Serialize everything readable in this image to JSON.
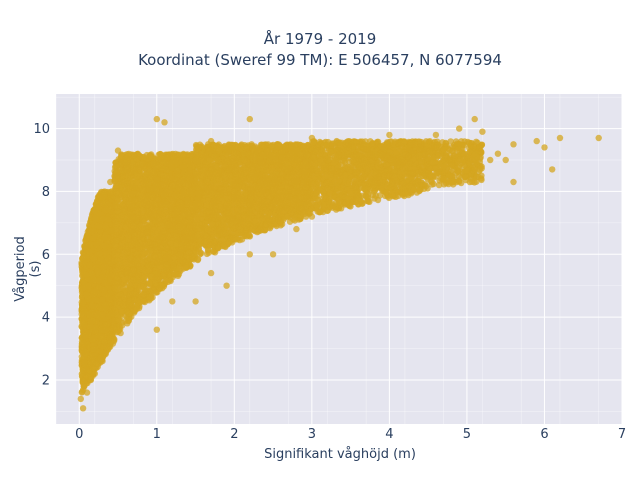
{
  "chart_data": {
    "type": "scatter",
    "title_line1": "År 1979 - 2019",
    "title_line2": "Koordinat (Sweref 99 TM): E 506457, N 6077594",
    "xlabel": "Signifikant våghöjd (m)",
    "ylabel": "Vågperiod (s)",
    "xlim": [
      -0.3,
      7
    ],
    "ylim": [
      0.6,
      11.1
    ],
    "xticks": [
      0,
      1,
      2,
      3,
      4,
      5,
      6,
      7
    ],
    "yticks": [
      2,
      4,
      6,
      8,
      10
    ],
    "grid": true,
    "legend": "none",
    "colors": {
      "marker": "#d4a520",
      "plot_bg": "#e5e5ef",
      "grid": "#ffffff",
      "text": "#2a3f5f"
    },
    "series": [
      {
        "points": [
          [
            0.02,
            1.4
          ],
          [
            0.05,
            1.1
          ],
          [
            0.1,
            1.6
          ],
          [
            0.15,
            2.0
          ],
          [
            0.2,
            2.2
          ],
          [
            0.3,
            2.6
          ],
          [
            0.05,
            5.9
          ],
          [
            0.1,
            6.6
          ],
          [
            0.2,
            7.4
          ],
          [
            0.3,
            7.8
          ],
          [
            0.4,
            8.3
          ],
          [
            0.5,
            9.3
          ],
          [
            0.5,
            4.0
          ],
          [
            0.7,
            5.5
          ],
          [
            0.8,
            6.8
          ],
          [
            0.9,
            7.3
          ],
          [
            1.0,
            8.0
          ],
          [
            1.1,
            9.0
          ],
          [
            1.0,
            10.3
          ],
          [
            1.1,
            10.2
          ],
          [
            1.0,
            3.6
          ],
          [
            1.2,
            4.5
          ],
          [
            1.3,
            6.0
          ],
          [
            1.5,
            7.5
          ],
          [
            1.5,
            4.5
          ],
          [
            1.7,
            5.4
          ],
          [
            1.7,
            9.6
          ],
          [
            1.9,
            5.0
          ],
          [
            2.0,
            6.5
          ],
          [
            2.0,
            8.0
          ],
          [
            2.2,
            6.0
          ],
          [
            2.2,
            10.3
          ],
          [
            2.4,
            8.5
          ],
          [
            2.5,
            6.0
          ],
          [
            2.6,
            7.0
          ],
          [
            2.8,
            6.8
          ],
          [
            2.8,
            9.3
          ],
          [
            3.0,
            7.2
          ],
          [
            3.0,
            9.7
          ],
          [
            3.3,
            7.5
          ],
          [
            3.5,
            8.0
          ],
          [
            3.6,
            9.4
          ],
          [
            3.8,
            8.2
          ],
          [
            4.0,
            8.5
          ],
          [
            4.0,
            9.8
          ],
          [
            4.3,
            8.6
          ],
          [
            4.5,
            8.8
          ],
          [
            4.6,
            9.8
          ],
          [
            4.8,
            8.9
          ],
          [
            4.9,
            10.0
          ],
          [
            5.0,
            9.0
          ],
          [
            5.1,
            8.7
          ],
          [
            5.1,
            10.3
          ],
          [
            5.2,
            9.9
          ],
          [
            5.3,
            9.0
          ],
          [
            5.4,
            9.2
          ],
          [
            5.5,
            9.0
          ],
          [
            5.6,
            8.3
          ],
          [
            5.6,
            9.5
          ],
          [
            5.9,
            9.6
          ],
          [
            6.0,
            9.4
          ],
          [
            6.1,
            8.7
          ],
          [
            6.2,
            9.7
          ],
          [
            6.7,
            9.7
          ]
        ],
        "clouds": [
          {
            "xmin": 0.03,
            "xmax": 0.45,
            "ybase": 1.3,
            "ytop": 8.0,
            "n": 2600
          },
          {
            "xmin": 0.45,
            "xmax": 1.5,
            "ybase": 3.0,
            "ytop": 9.2,
            "n": 3400
          },
          {
            "xmin": 1.5,
            "xmax": 3.0,
            "ybase": 4.8,
            "ytop": 9.5,
            "n": 3000
          },
          {
            "xmin": 3.0,
            "xmax": 4.5,
            "ybase": 7.0,
            "ytop": 9.6,
            "n": 1500
          },
          {
            "xmin": 4.5,
            "xmax": 5.2,
            "ybase": 8.2,
            "ytop": 9.6,
            "n": 350
          }
        ]
      }
    ]
  }
}
